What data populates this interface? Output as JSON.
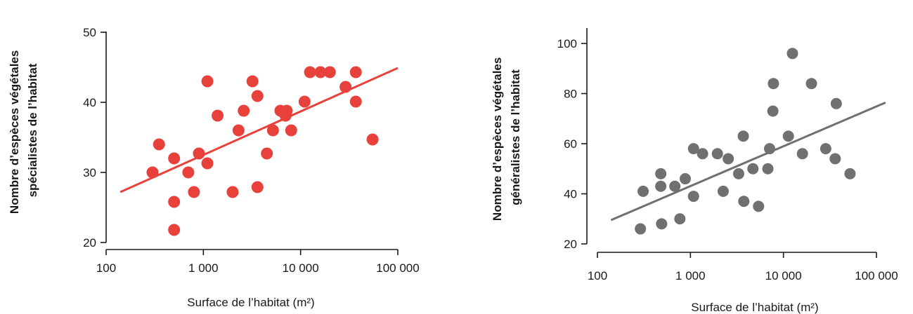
{
  "chart_data": [
    {
      "type": "scatter",
      "xscale": "log",
      "xlabel": "Surface de l’habitat (m²)",
      "ylabel_lines": [
        "Nombre d’espèces végétales",
        "spécialistes de l’habitat"
      ],
      "xlim": [
        100,
        100000
      ],
      "ylim": [
        20,
        50
      ],
      "xticks": [
        100,
        1000,
        10000,
        100000
      ],
      "xtick_labels": [
        "100",
        "1 000",
        "10 000",
        "100 000"
      ],
      "yticks": [
        20,
        30,
        40,
        50
      ],
      "ytick_labels": [
        "20",
        "30",
        "40",
        "50"
      ],
      "color": "#e8413c",
      "grid": false,
      "points": [
        {
          "x": 300,
          "y": 30
        },
        {
          "x": 350,
          "y": 34
        },
        {
          "x": 500,
          "y": 32
        },
        {
          "x": 500,
          "y": 25.8
        },
        {
          "x": 500,
          "y": 21.8
        },
        {
          "x": 700,
          "y": 30
        },
        {
          "x": 800,
          "y": 27.2
        },
        {
          "x": 900,
          "y": 32.7
        },
        {
          "x": 1100,
          "y": 43
        },
        {
          "x": 1100,
          "y": 31.3
        },
        {
          "x": 1400,
          "y": 38.1
        },
        {
          "x": 2000,
          "y": 27.2
        },
        {
          "x": 2300,
          "y": 36
        },
        {
          "x": 2600,
          "y": 38.8
        },
        {
          "x": 3200,
          "y": 43
        },
        {
          "x": 3600,
          "y": 40.9
        },
        {
          "x": 3600,
          "y": 27.9
        },
        {
          "x": 4500,
          "y": 32.7
        },
        {
          "x": 5200,
          "y": 36
        },
        {
          "x": 6200,
          "y": 38.8
        },
        {
          "x": 7200,
          "y": 38.8
        },
        {
          "x": 7000,
          "y": 38.1
        },
        {
          "x": 8000,
          "y": 36
        },
        {
          "x": 11000,
          "y": 40.1
        },
        {
          "x": 12500,
          "y": 44.3
        },
        {
          "x": 16000,
          "y": 44.3
        },
        {
          "x": 20000,
          "y": 44.3
        },
        {
          "x": 29000,
          "y": 42.2
        },
        {
          "x": 37000,
          "y": 44.3
        },
        {
          "x": 37000,
          "y": 40.1
        },
        {
          "x": 55000,
          "y": 34.7
        }
      ],
      "trendline": {
        "x": [
          140,
          100000
        ],
        "y": [
          27.2,
          44.9
        ]
      }
    },
    {
      "type": "scatter",
      "xscale": "log",
      "xlabel": "Surface de l’habitat (m²)",
      "ylabel_lines": [
        "Nombre d’espèces végétales",
        "généralistes de l’habitat"
      ],
      "xlim": [
        100,
        100000
      ],
      "ylim": [
        20,
        100
      ],
      "xticks": [
        100,
        1000,
        10000,
        100000
      ],
      "xtick_labels": [
        "100",
        "1 000",
        "10 000",
        "100 000"
      ],
      "yticks": [
        20,
        40,
        60,
        80,
        100
      ],
      "ytick_labels": [
        "20",
        "40",
        "60",
        "80",
        "100"
      ],
      "color": "#707070",
      "grid": false,
      "points": [
        {
          "x": 290,
          "y": 26
        },
        {
          "x": 310,
          "y": 41
        },
        {
          "x": 480,
          "y": 48
        },
        {
          "x": 480,
          "y": 43
        },
        {
          "x": 490,
          "y": 28
        },
        {
          "x": 680,
          "y": 43
        },
        {
          "x": 770,
          "y": 30
        },
        {
          "x": 880,
          "y": 46
        },
        {
          "x": 1080,
          "y": 58
        },
        {
          "x": 1080,
          "y": 39
        },
        {
          "x": 1350,
          "y": 56
        },
        {
          "x": 1950,
          "y": 56
        },
        {
          "x": 2250,
          "y": 41
        },
        {
          "x": 2550,
          "y": 54
        },
        {
          "x": 3300,
          "y": 48
        },
        {
          "x": 3700,
          "y": 63
        },
        {
          "x": 3750,
          "y": 37
        },
        {
          "x": 4700,
          "y": 50
        },
        {
          "x": 5400,
          "y": 35
        },
        {
          "x": 6800,
          "y": 50
        },
        {
          "x": 7100,
          "y": 58
        },
        {
          "x": 7700,
          "y": 73
        },
        {
          "x": 7800,
          "y": 84
        },
        {
          "x": 11300,
          "y": 63
        },
        {
          "x": 12500,
          "y": 96
        },
        {
          "x": 16000,
          "y": 56
        },
        {
          "x": 20000,
          "y": 84
        },
        {
          "x": 28500,
          "y": 58
        },
        {
          "x": 36000,
          "y": 54
        },
        {
          "x": 37000,
          "y": 76
        },
        {
          "x": 52000,
          "y": 48
        }
      ],
      "trendline": {
        "x": [
          140,
          125000
        ],
        "y": [
          29.5,
          76.4
        ]
      }
    }
  ]
}
